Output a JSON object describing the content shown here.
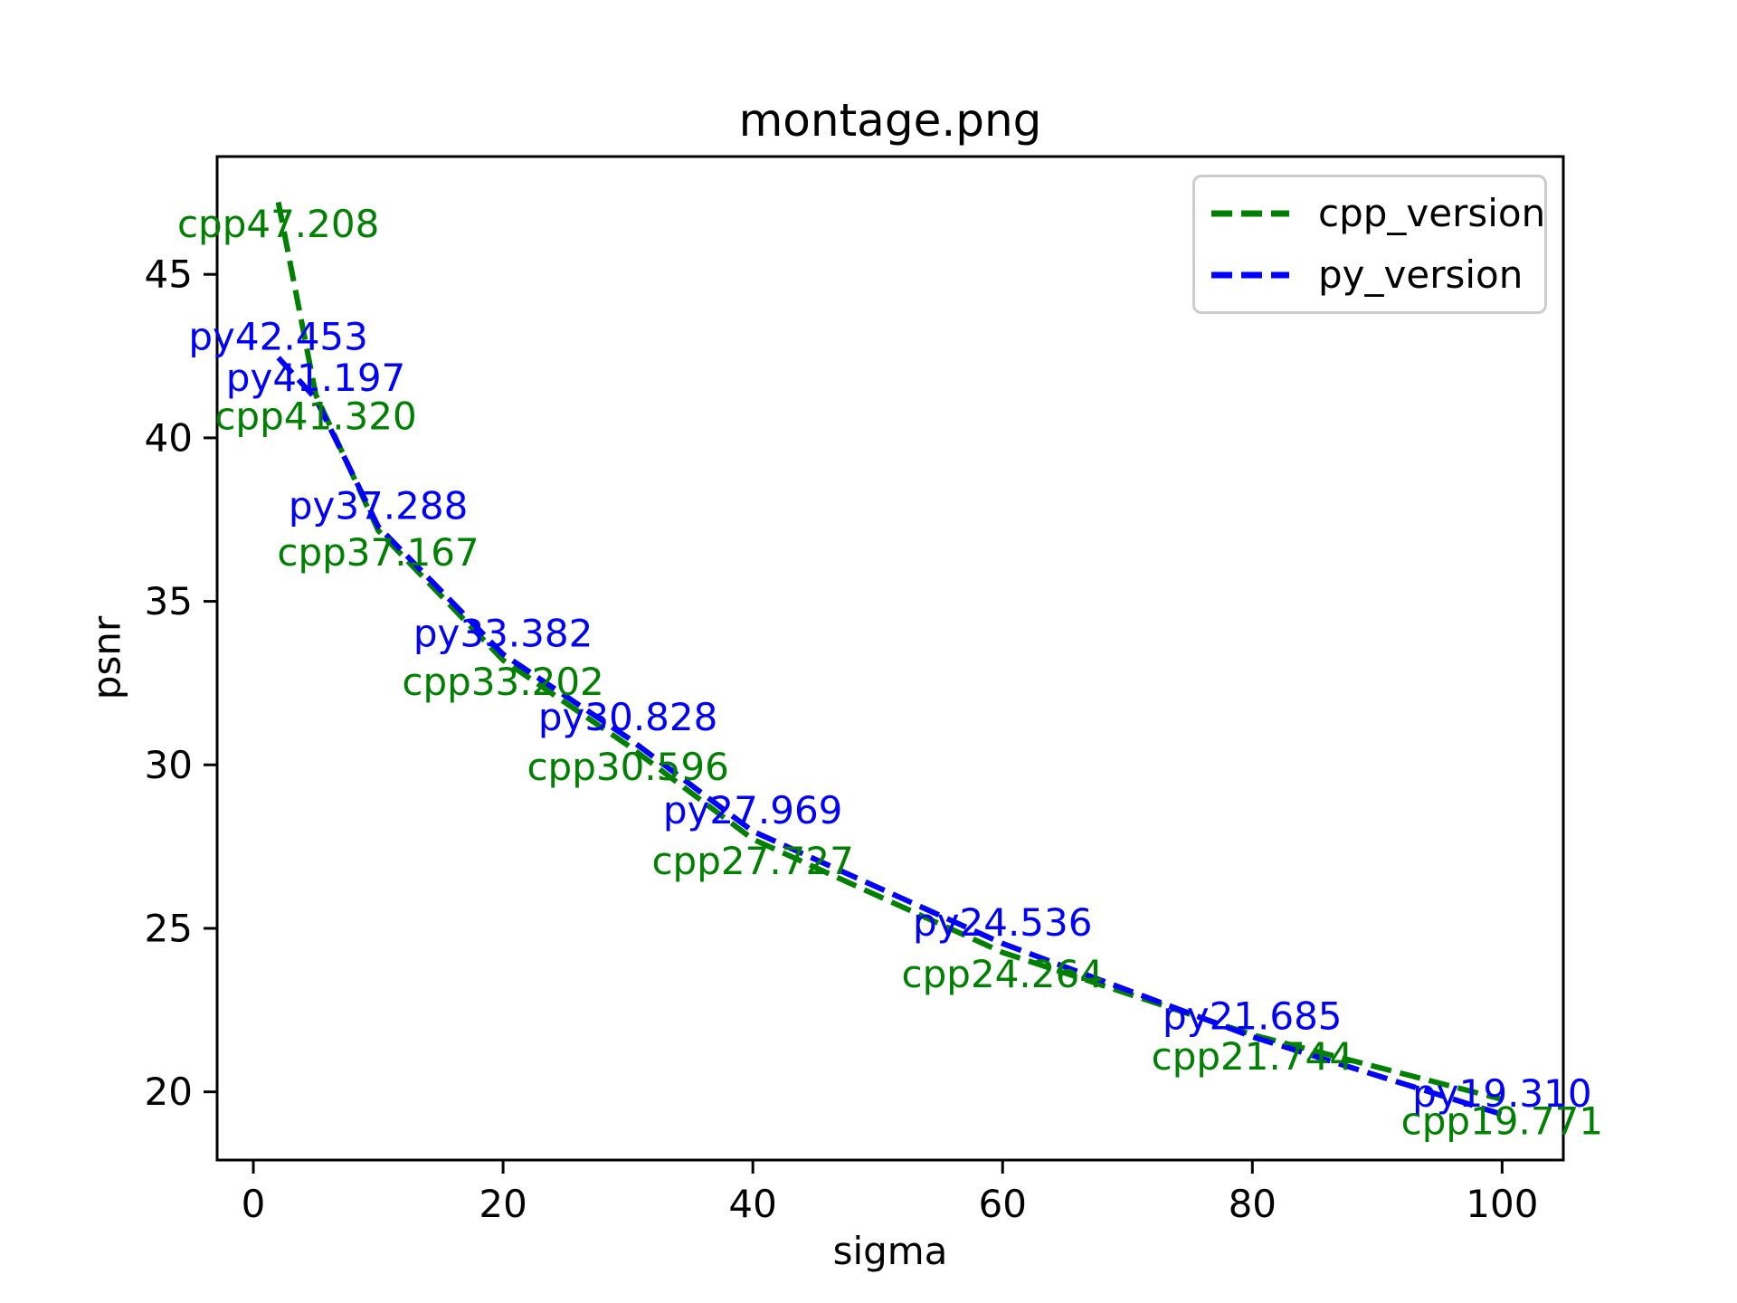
{
  "chart_data": {
    "type": "line",
    "title": "montage.png",
    "xlabel": "sigma",
    "ylabel": "psnr",
    "line_style": "dashed",
    "grid": false,
    "x": [
      2,
      5,
      10,
      20,
      30,
      40,
      60,
      80,
      100
    ],
    "series": [
      {
        "name": "cpp_version",
        "label_prefix": "cpp",
        "color": "#008000",
        "annotation_side": "below",
        "values": [
          47.208,
          41.32,
          37.167,
          33.202,
          30.596,
          27.727,
          24.264,
          21.744,
          19.771
        ]
      },
      {
        "name": "py_version",
        "label_prefix": "py",
        "color": "#0000ff",
        "annotation_side": "above",
        "values": [
          42.453,
          41.197,
          37.288,
          33.382,
          30.828,
          27.969,
          24.536,
          21.685,
          19.31
        ]
      }
    ],
    "xlim": [
      -2.9,
      104.9
    ],
    "ylim": [
      17.915,
      48.603
    ],
    "xticks": [
      0,
      20,
      40,
      60,
      80,
      100
    ],
    "yticks": [
      20,
      25,
      30,
      35,
      40,
      45
    ],
    "legend": {
      "position": "upper-right",
      "entries": [
        "cpp_version",
        "py_version"
      ]
    }
  }
}
